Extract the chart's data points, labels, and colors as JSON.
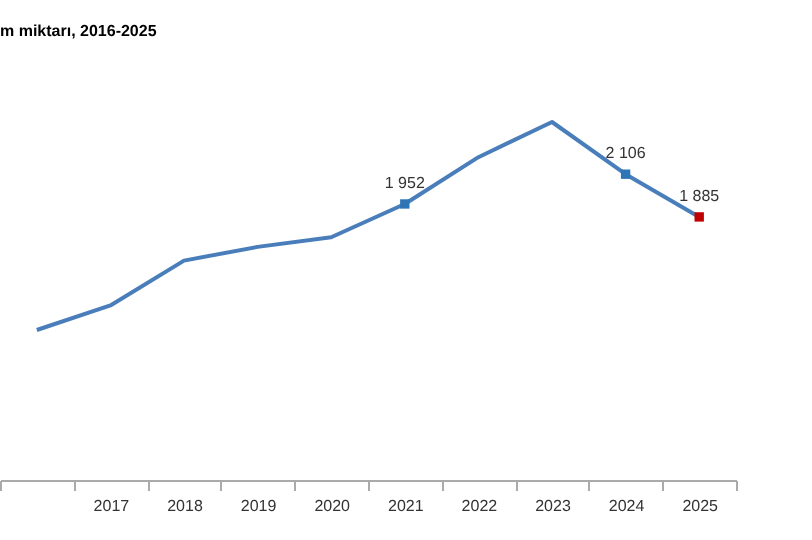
{
  "chart_data": {
    "type": "line",
    "title": "m miktarı, 2016-2025",
    "categories": [
      null,
      "2017",
      "2018",
      "2019",
      "2020",
      "2021",
      "2022",
      "2023",
      "2024",
      "2025"
    ],
    "series": [
      {
        "color": "#4a7ebb",
        "values": [
          1300,
          1427,
          1659,
          1730,
          1780,
          1952,
          2194,
          2376,
          2106,
          1885
        ],
        "colors": [
          null,
          null,
          null,
          null,
          null,
          "#2e75b6",
          null,
          null,
          "#2e75b6",
          "#c00000"
        ],
        "value_labels": [
          null,
          null,
          null,
          null,
          null,
          "1 952",
          null,
          null,
          "2 106",
          "1 885"
        ]
      }
    ],
    "tick_labels": "x",
    "grid": false
  }
}
